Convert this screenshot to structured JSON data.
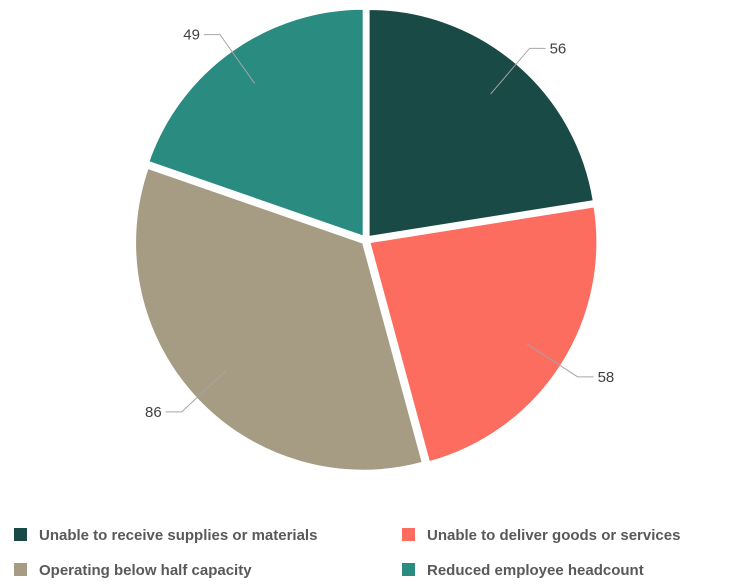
{
  "chart_data": {
    "type": "pie",
    "title": "",
    "start_angle_deg": 0,
    "direction": "clockwise",
    "slices": [
      {
        "label": "Unable to receive supplies or materials",
        "value": 56,
        "color": "#1a4a45"
      },
      {
        "label": "Unable to deliver goods or services",
        "value": 58,
        "color": "#fc6d5f"
      },
      {
        "label": "Operating below half capacity",
        "value": 86,
        "color": "#a59c83"
      },
      {
        "label": "Reduced employee headcount",
        "value": 49,
        "color": "#2a8b81"
      }
    ],
    "data_labels": "outside-with-leader-lines",
    "legend": {
      "position": "bottom",
      "columns": 2
    }
  }
}
